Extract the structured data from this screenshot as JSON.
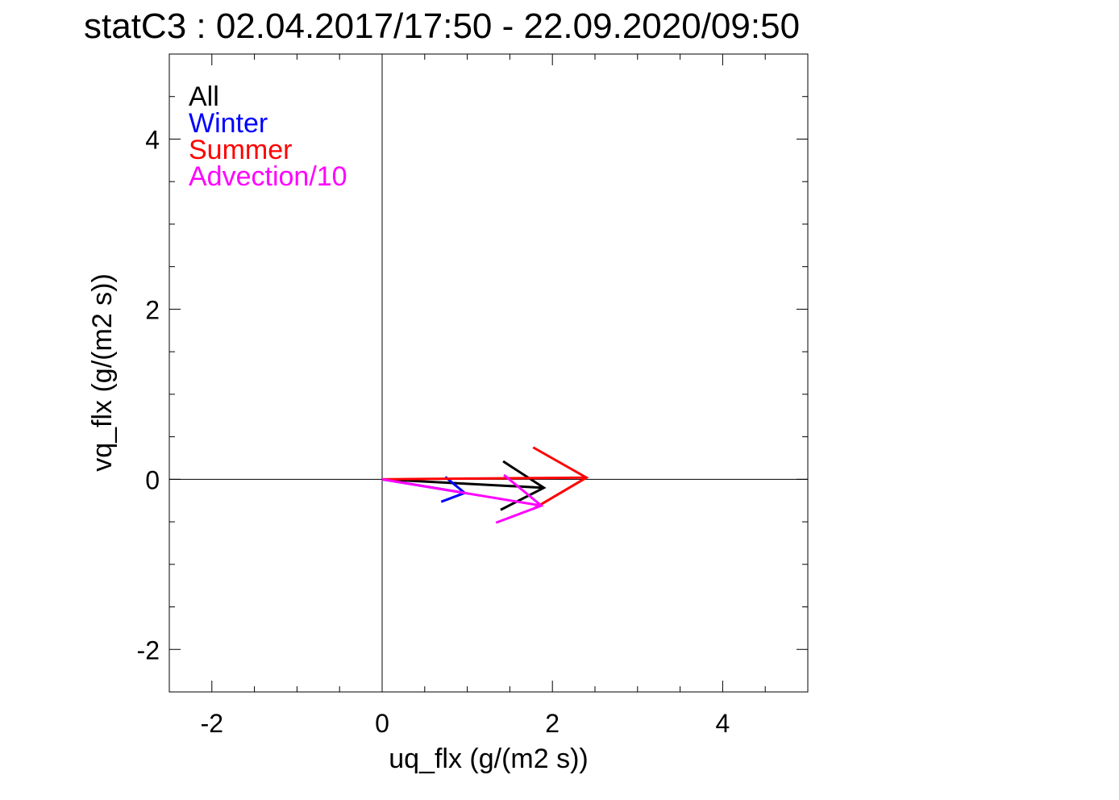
{
  "chart_data": {
    "type": "vector",
    "title": "statC3 : 02.04.2017/17:50 - 22.09.2020/09:50",
    "xlabel": "uq_flx (g/(m2 s))",
    "ylabel": "vq_flx (g/(m2 s))",
    "xlim": [
      -2.5,
      5.0
    ],
    "ylim": [
      -2.5,
      5.0
    ],
    "x_ticks": [
      -2,
      0,
      2,
      4
    ],
    "y_ticks": [
      -2,
      0,
      2,
      4
    ],
    "x_tick_labels": [
      "-2",
      "0",
      "2",
      "4"
    ],
    "y_tick_labels": [
      "-2",
      "0",
      "2",
      "4"
    ],
    "minor_tick_step": 0.5,
    "zero_lines": true,
    "grid": false,
    "legend_position": "top-left",
    "series": [
      {
        "name": "All",
        "color": "#000000",
        "u": 1.9,
        "v": -0.1
      },
      {
        "name": "Winter",
        "color": "#0000ff",
        "u": 0.97,
        "v": -0.16
      },
      {
        "name": "Summer",
        "color": "#ff0000",
        "u": 2.4,
        "v": 0.02
      },
      {
        "name": "Advection/10",
        "color": "#ff00ff",
        "u": 1.87,
        "v": -0.31
      }
    ]
  }
}
